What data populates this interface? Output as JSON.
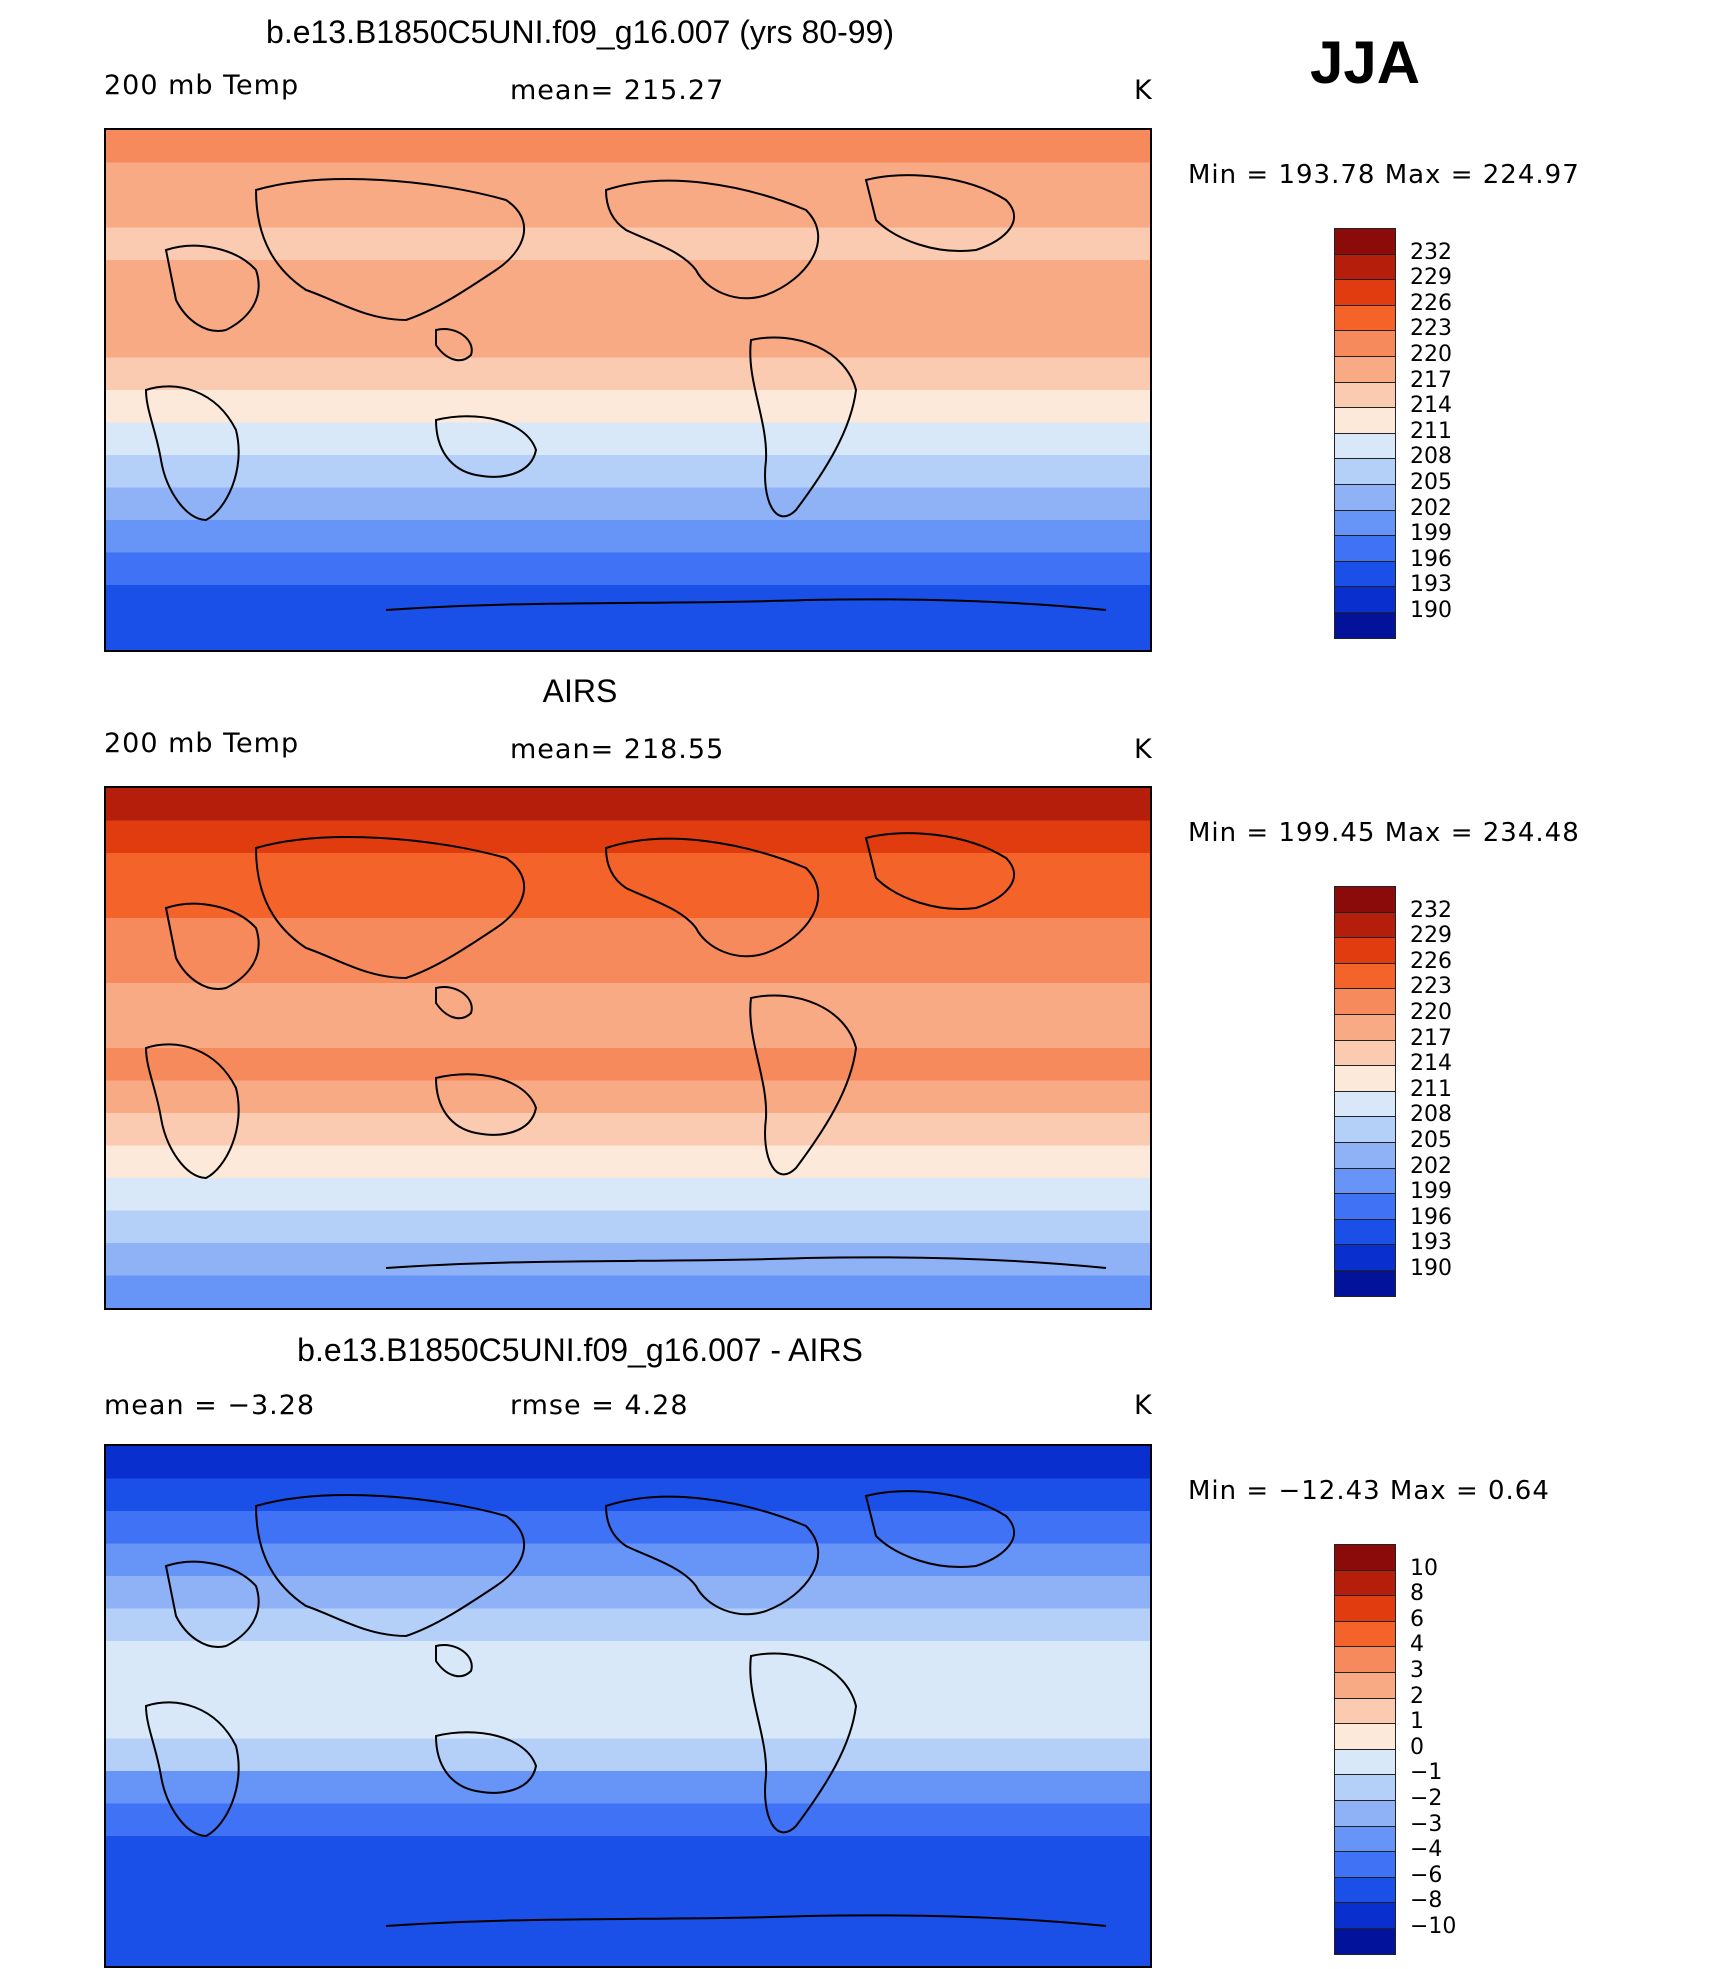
{
  "season": "JJA",
  "panels": [
    {
      "title": "b.e13.B1850C5UNI.f09_g16.007 (yrs 80-99)",
      "left_label": "200 mb Temp",
      "center_label": "mean=  215.27",
      "right_label": "K",
      "min_max": "Min  =  193.78  Max  =  224.97",
      "colorbar": {
        "labels": [
          "232",
          "229",
          "226",
          "223",
          "220",
          "217",
          "214",
          "211",
          "208",
          "205",
          "202",
          "199",
          "196",
          "193",
          "190"
        ],
        "colors": [
          "#8b0b0b",
          "#b51e0a",
          "#e03c10",
          "#f4632a",
          "#f78a5c",
          "#f7aa84",
          "#facbb0",
          "#fde9da",
          "#d8e8f8",
          "#b4cff8",
          "#8fb2f7",
          "#6694f7",
          "#3f72f4",
          "#1a4fe8",
          "#0a2fcf",
          "#03129a"
        ]
      },
      "map_bands": [
        "#f78a5c",
        "#f7aa84",
        "#f7aa84",
        "#facbb0",
        "#f7aa84",
        "#f7aa84",
        "#f7aa84",
        "#facbb0",
        "#fde9da",
        "#d8e8f8",
        "#b4cff8",
        "#8fb2f7",
        "#6694f7",
        "#3f72f4",
        "#1a4fe8",
        "#1a4fe8"
      ]
    },
    {
      "title": "AIRS",
      "left_label": "200 mb Temp",
      "center_label": "mean=  218.55",
      "right_label": "K",
      "min_max": "Min  =  199.45  Max  =  234.48",
      "colorbar": {
        "labels": [
          "232",
          "229",
          "226",
          "223",
          "220",
          "217",
          "214",
          "211",
          "208",
          "205",
          "202",
          "199",
          "196",
          "193",
          "190"
        ],
        "colors": [
          "#8b0b0b",
          "#b51e0a",
          "#e03c10",
          "#f4632a",
          "#f78a5c",
          "#f7aa84",
          "#facbb0",
          "#fde9da",
          "#d8e8f8",
          "#b4cff8",
          "#8fb2f7",
          "#6694f7",
          "#3f72f4",
          "#1a4fe8",
          "#0a2fcf",
          "#03129a"
        ]
      },
      "map_bands": [
        "#b51e0a",
        "#e03c10",
        "#f4632a",
        "#f4632a",
        "#f78a5c",
        "#f78a5c",
        "#f7aa84",
        "#f7aa84",
        "#f78a5c",
        "#f7aa84",
        "#facbb0",
        "#fde9da",
        "#d8e8f8",
        "#b4cff8",
        "#8fb2f7",
        "#6694f7"
      ]
    },
    {
      "title": "b.e13.B1850C5UNI.f09_g16.007 - AIRS",
      "left_label": "mean  =    −3.28",
      "center_label": "rmse  =     4.28",
      "right_label": "K",
      "min_max": "Min  =  −12.43  Max  =     0.64",
      "colorbar": {
        "labels": [
          "10",
          "8",
          "6",
          "4",
          "3",
          "2",
          "1",
          "0",
          "−1",
          "−2",
          "−3",
          "−4",
          "−6",
          "−8",
          "−10"
        ],
        "colors": [
          "#8b0b0b",
          "#b51e0a",
          "#e03c10",
          "#f4632a",
          "#f78a5c",
          "#f7aa84",
          "#facbb0",
          "#fde9da",
          "#d8e8f8",
          "#b4cff8",
          "#8fb2f7",
          "#6694f7",
          "#3f72f4",
          "#1a4fe8",
          "#0a2fcf",
          "#03129a"
        ]
      },
      "map_bands": [
        "#0a2fcf",
        "#1a4fe8",
        "#3f72f4",
        "#6694f7",
        "#8fb2f7",
        "#b4cff8",
        "#d8e8f8",
        "#d8e8f8",
        "#d8e8f8",
        "#b4cff8",
        "#6694f7",
        "#3f72f4",
        "#1a4fe8",
        "#1a4fe8",
        "#1a4fe8",
        "#1a4fe8"
      ]
    }
  ]
}
